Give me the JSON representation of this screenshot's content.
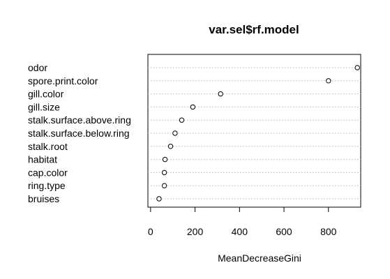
{
  "chart_data": {
    "type": "scatter",
    "title": "var.sel$rf.model",
    "xlabel": "MeanDecreaseGini",
    "ylabel": "",
    "xlim": [
      -12,
      945
    ],
    "xticks": [
      0,
      200,
      400,
      600,
      800
    ],
    "grid": "dotted horizontal line per variable",
    "legend": "none",
    "categories": [
      "odor",
      "spore.print.color",
      "gill.color",
      "gill.size",
      "stalk.surface.above.ring",
      "stalk.surface.below.ring",
      "stalk.root",
      "habitat",
      "cap.color",
      "ring.type",
      "bruises"
    ],
    "values": [
      930,
      800,
      315,
      190,
      140,
      110,
      90,
      65,
      62,
      62,
      38
    ]
  }
}
